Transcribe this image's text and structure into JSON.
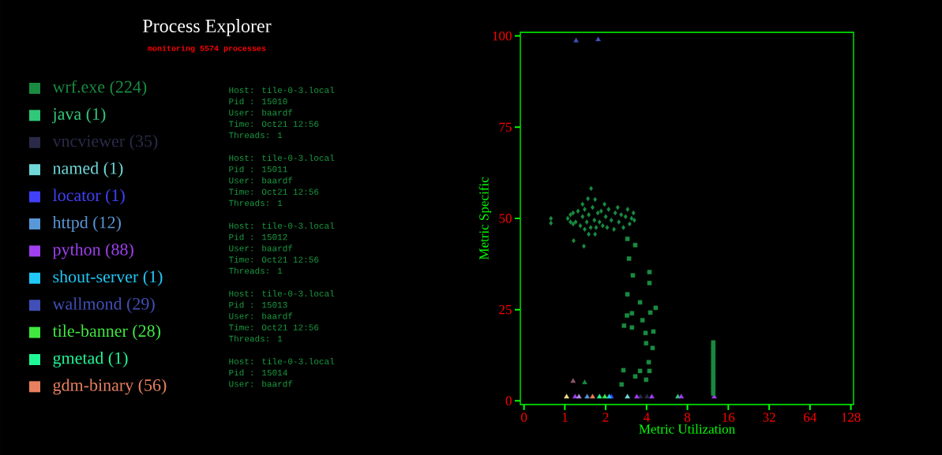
{
  "chart_data": {
    "type": "scatter",
    "title": "Process Explorer",
    "subtitle": "monitoring 5574 processes",
    "xlabel": "Metric Utilization",
    "ylabel": "Metric Specific",
    "legend": "left",
    "log": "x",
    "xlim": [
      0.47,
      134
    ],
    "ylim": [
      -1,
      101
    ],
    "xticks": [
      {
        "value": 0.5,
        "label": "0"
      },
      1,
      2,
      4,
      8,
      16,
      32,
      64,
      128
    ],
    "yticks": [
      0,
      25,
      50,
      75,
      100
    ],
    "annotations": [
      "Host:  tile-0-3.local",
      "Pid :  15010",
      "User:  baardf",
      "Time:  Oct21 12:56",
      "Threads:  1",
      "Host:  tile-0-3.local",
      "Pid :  15011",
      "User:  baardf",
      "Time:  Oct21 12:56",
      "Threads:  1",
      "Host:  tile-0-3.local",
      "Pid :  15012",
      "User:  baardf",
      "Time:  Oct21 12:56",
      "Threads:  1",
      "Host:  tile-0-3.local",
      "Pid :  15013",
      "User:  baardf",
      "Time:  Oct21 12:56",
      "Threads:  1",
      "Host:  tile-0-3.local",
      "Pid :  15014",
      "User:  baardf"
    ],
    "series": [
      {
        "name": "wrf.exe (224)",
        "color": "#1a8a40",
        "marker": "diamond",
        "x": [
          0.79,
          0.79,
          1.56,
          1.67,
          1.96,
          1.35,
          1.48,
          1.16,
          1.38,
          1.67,
          1.5,
          1.05,
          1.1,
          1.1,
          1.15,
          1.15,
          1.2,
          1.25,
          1.3,
          1.35,
          1.4,
          1.4,
          1.45,
          1.5,
          1.55,
          1.6,
          1.65,
          1.7,
          1.75,
          1.8,
          1.85,
          1.9,
          2.0,
          2.05,
          2.1,
          2.2,
          2.3,
          2.35,
          2.45,
          2.5,
          2.6,
          2.7,
          2.8,
          2.9,
          3.0,
          3.1,
          3.2,
          3.25
        ],
        "values": [
          50,
          48.7,
          58.2,
          55.2,
          53.9,
          53.9,
          55.4,
          43.9,
          42.4,
          45.7,
          45.7,
          50,
          49,
          51,
          48.5,
          51.5,
          49,
          52,
          48,
          50.5,
          47,
          52.5,
          49,
          51,
          47.5,
          53,
          49.5,
          47.5,
          51.5,
          49,
          52,
          48,
          50.5,
          47.5,
          52.5,
          49.5,
          47,
          51.5,
          53,
          49,
          51,
          47.5,
          50.5,
          52.5,
          48.5,
          50,
          51.5,
          49.5
        ]
      },
      {
        "name": "java (1)",
        "color": "#30c878",
        "marker": "triangle",
        "x": [
          6.8
        ],
        "values": [
          1.1
        ]
      },
      {
        "name": "vncviewer (35)",
        "color": "#2a2a48",
        "marker": "triangle",
        "x": [
          3.6,
          4.03
        ],
        "values": [
          1.1,
          1.1
        ]
      },
      {
        "name": "named (1)",
        "color": "#70d8d8",
        "marker": "triangle",
        "x": [
          2.89
        ],
        "values": [
          1.1
        ]
      },
      {
        "name": "locator (1)",
        "color": "#4040f8",
        "marker": "triangle",
        "x": [
          2.2
        ],
        "values": [
          1.1
        ]
      },
      {
        "name": "httpd (12)",
        "color": "#5898d8",
        "marker": "triangle",
        "x": [
          1.46
        ],
        "values": [
          1.1
        ]
      },
      {
        "name": "python (88)",
        "color": "#a040f0",
        "marker": "triangle",
        "x": [
          1.19,
          3.39,
          4.37,
          7.2,
          12.6
        ],
        "values": [
          1.1,
          1.1,
          1.1,
          1.1,
          1.1
        ]
      },
      {
        "name": "shout-server (1)",
        "color": "#20c8f8",
        "marker": "triangle",
        "x": [
          2.12
        ],
        "values": [
          1.1
        ]
      },
      {
        "name": "wallmond (29)",
        "color": "#4050b8",
        "marker": "triangle",
        "x": [
          1.21,
          1.76
        ],
        "values": [
          98.7,
          99
        ]
      },
      {
        "name": "tile-banner (28)",
        "color": "#40e840",
        "marker": "triangle",
        "x": [
          1.97
        ],
        "values": [
          1.1
        ]
      },
      {
        "name": "gmetad (1)",
        "color": "#20f898",
        "marker": "triangle",
        "x": [
          1.8
        ],
        "values": [
          1.1
        ]
      },
      {
        "name": "gdm-binary (56)",
        "color": "#e88060",
        "marker": "triangle",
        "x": [
          1.6
        ],
        "values": [
          1.1
        ]
      },
      {
        "color": "#1a8a40",
        "marker": "square",
        "x": [
          2.89,
          3.3,
          2.97,
          4.2,
          3.17,
          4.2,
          2.89,
          3.58,
          4.67,
          4.26,
          3.12,
          2.87,
          3.73,
          2.73,
          3.12,
          3.93,
          4.49,
          3.97,
          4.43,
          4.15,
          2.7,
          4.2,
          3.58,
          3.3,
          3.97,
          2.62,
          12.4,
          12.4,
          12.4,
          12.4,
          12.4,
          12.4,
          12.4,
          12.4,
          12.4,
          12.4,
          12.4,
          12.4,
          12.4,
          12.4,
          12.4
        ],
        "values": [
          44.4,
          42.7,
          39,
          35.3,
          34.4,
          32.3,
          29.2,
          27,
          25.5,
          24.2,
          24,
          23.4,
          22.1,
          20.6,
          20.1,
          18.6,
          19,
          15.8,
          14.5,
          10.6,
          8.4,
          8.2,
          8.2,
          6.7,
          5.8,
          4.5,
          2,
          3,
          4,
          5,
          6,
          7,
          8,
          9,
          10,
          11,
          12,
          13,
          14,
          15,
          16
        ]
      },
      {
        "color": "#1a8a40",
        "marker": "triangle",
        "x": [
          1.4
        ],
        "values": [
          5
        ]
      },
      {
        "color": "#f0e08c",
        "marker": "triangle",
        "x": [
          1.03
        ],
        "values": [
          1.1
        ]
      },
      {
        "color": "#b088e0",
        "marker": "triangle",
        "x": [
          1.27
        ],
        "values": [
          1.1
        ]
      },
      {
        "color": "#905868",
        "marker": "triangle",
        "x": [
          1.15
        ],
        "values": [
          5.4
        ]
      }
    ]
  }
}
